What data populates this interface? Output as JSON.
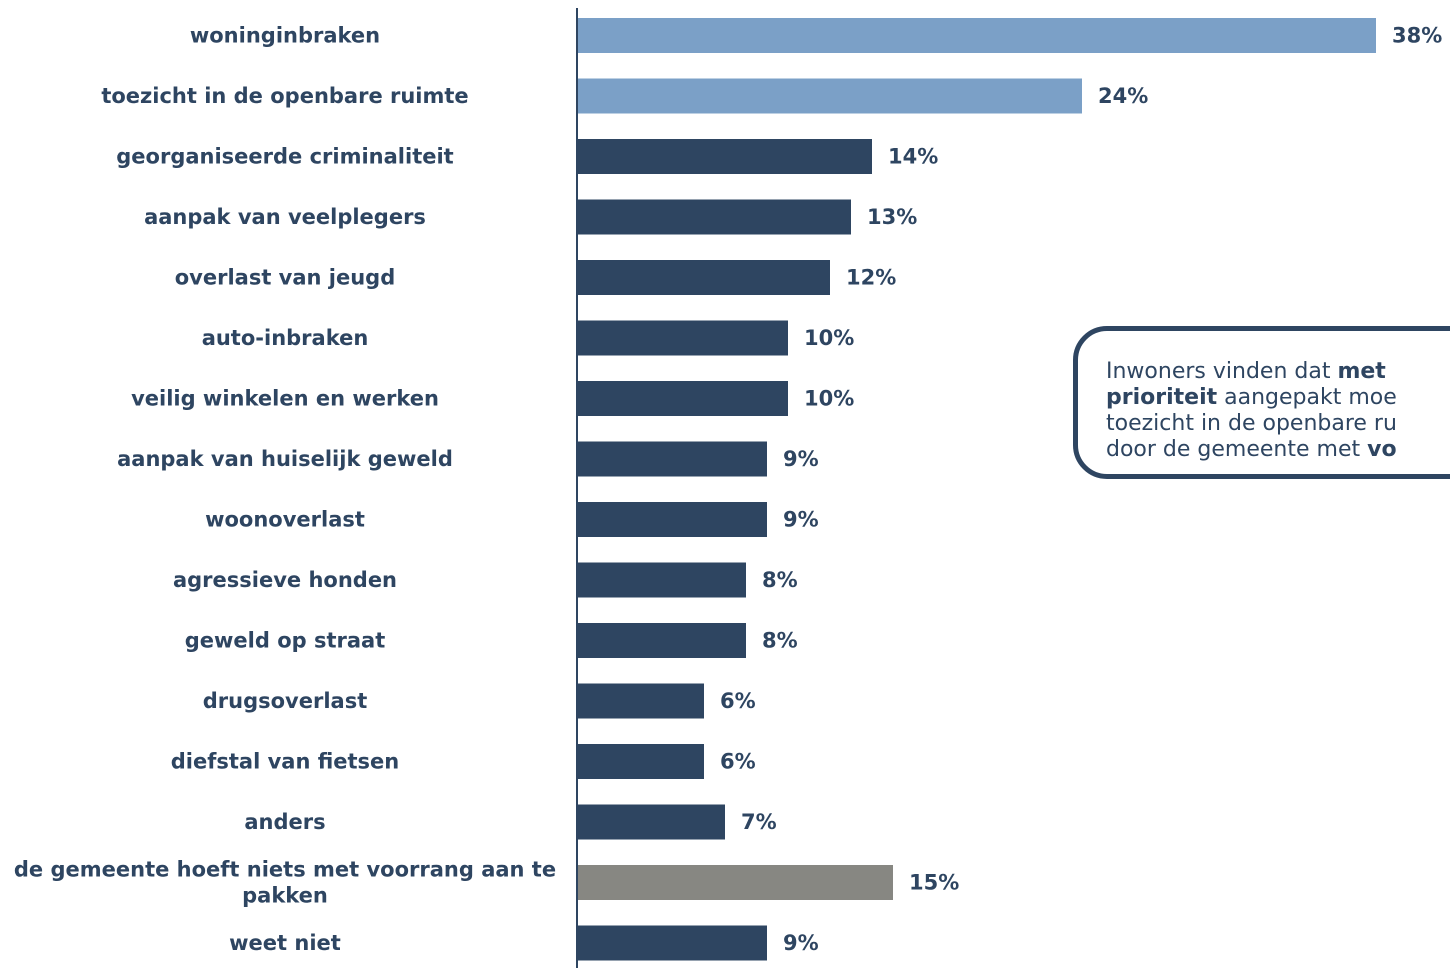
{
  "chart_data": {
    "type": "bar",
    "orientation": "horizontal",
    "categories": [
      "woninginbraken",
      "toezicht in de openbare ruimte",
      "georganiseerde criminaliteit",
      "aanpak van veelplegers",
      "overlast van jeugd",
      "auto-inbraken",
      "veilig winkelen en werken",
      "aanpak van huiselijk geweld",
      "woonoverlast",
      "agressieve honden",
      "geweld op straat",
      "drugsoverlast",
      "diefstal van fietsen",
      "anders",
      "de gemeente hoeft niets met voorrang aan te pakken",
      "weet niet"
    ],
    "values": [
      38,
      24,
      14,
      13,
      12,
      10,
      10,
      9,
      9,
      8,
      8,
      6,
      6,
      7,
      15,
      9
    ],
    "value_labels": [
      "38%",
      "24%",
      "14%",
      "13%",
      "12%",
      "10%",
      "10%",
      "9%",
      "9%",
      "8%",
      "8%",
      "6%",
      "6%",
      "7%",
      "15%",
      "9%"
    ],
    "bar_colors": [
      "#7ba0c7",
      "#7ba0c7",
      "#2e4561",
      "#2e4561",
      "#2e4561",
      "#2e4561",
      "#2e4561",
      "#2e4561",
      "#2e4561",
      "#2e4561",
      "#2e4561",
      "#2e4561",
      "#2e4561",
      "#2e4561",
      "#878782",
      "#2e4561"
    ],
    "text_color": "#2e4561",
    "title": "",
    "xlabel": "",
    "ylabel": "",
    "grid": false,
    "legend": "none"
  },
  "callout": {
    "parts": [
      {
        "text": "Inwoners vinden dat ",
        "bold": false
      },
      {
        "text": "met",
        "bold": true
      },
      {
        "text": "\n",
        "bold": false
      },
      {
        "text": "prioriteit",
        "bold": true
      },
      {
        "text": " aangepakt moe",
        "bold": false
      },
      {
        "text": "\n",
        "bold": false
      },
      {
        "text": "toezicht in de openbare ru",
        "bold": false
      },
      {
        "text": "\n",
        "bold": false
      },
      {
        "text": "door de gemeente met ",
        "bold": false
      },
      {
        "text": "vo",
        "bold": true
      }
    ],
    "border_color": "#2e4561"
  }
}
